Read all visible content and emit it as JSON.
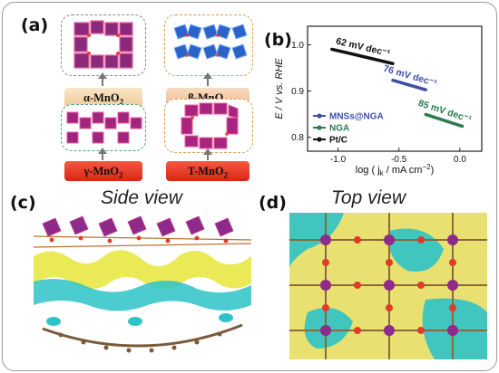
{
  "panels": {
    "a": {
      "label": "(a)"
    },
    "b": {
      "label": "(b)"
    },
    "c": {
      "label": "(c)",
      "title": "Side view"
    },
    "d": {
      "label": "(d)",
      "title": "Top view"
    }
  },
  "structures": [
    {
      "name": "α-MnO₂",
      "prefix": "α-MnO",
      "sub": "2",
      "box_color": "#c86a8a",
      "caption_bg": "#f2d4a8"
    },
    {
      "name": "β-MnO₂",
      "prefix": "β-MnO",
      "sub": "2",
      "box_color": "#2b6fd6",
      "caption_bg": "#f2c89a"
    },
    {
      "name": "γ-MnO₂",
      "prefix": "γ-MnO",
      "sub": "2",
      "box_color": "#a0257f",
      "caption_bg": "#e8322a"
    },
    {
      "name": "T-MnO₂",
      "prefix": "T-MnO",
      "sub": "2",
      "box_color": "#a8257f",
      "caption_bg": "#e8322a"
    }
  ],
  "chart_data": {
    "type": "line",
    "title": "",
    "xlabel": "log ( j",
    "xlabel_sub": "k",
    "xlabel_rest": " / mA cm",
    "xlabel_sup": "−2",
    "xlabel_end": ")",
    "ylabel": "E / V vs. RHE",
    "xlim": [
      -1.25,
      0.18
    ],
    "ylim": [
      0.77,
      1.04
    ],
    "xticks": [
      -1.0,
      -0.5,
      0.0
    ],
    "xtick_labels": [
      "-1.0",
      "-0.5",
      "0.0"
    ],
    "yticks": [
      0.8,
      0.9,
      1.0
    ],
    "ytick_labels": [
      "0.8",
      "0.9",
      "1.0"
    ],
    "legend_position": "bottom-left",
    "series": [
      {
        "name": "MNSs@NGA",
        "color": "#3f4fa3",
        "x": [
          -0.55,
          -0.28
        ],
        "y": [
          0.9233,
          0.9027
        ],
        "tafel": "76 mV dec⁻¹"
      },
      {
        "name": "NGA",
        "color": "#2f7a4f",
        "x": [
          -0.28,
          0.02
        ],
        "y": [
          0.8494,
          0.8239
        ],
        "tafel": "85 mV dec⁻¹"
      },
      {
        "name": "Pt/C",
        "color": "#111111",
        "x": [
          -1.05,
          -0.55
        ],
        "y": [
          0.9903,
          0.9593
        ],
        "tafel": "62 mV dec⁻¹"
      }
    ]
  }
}
